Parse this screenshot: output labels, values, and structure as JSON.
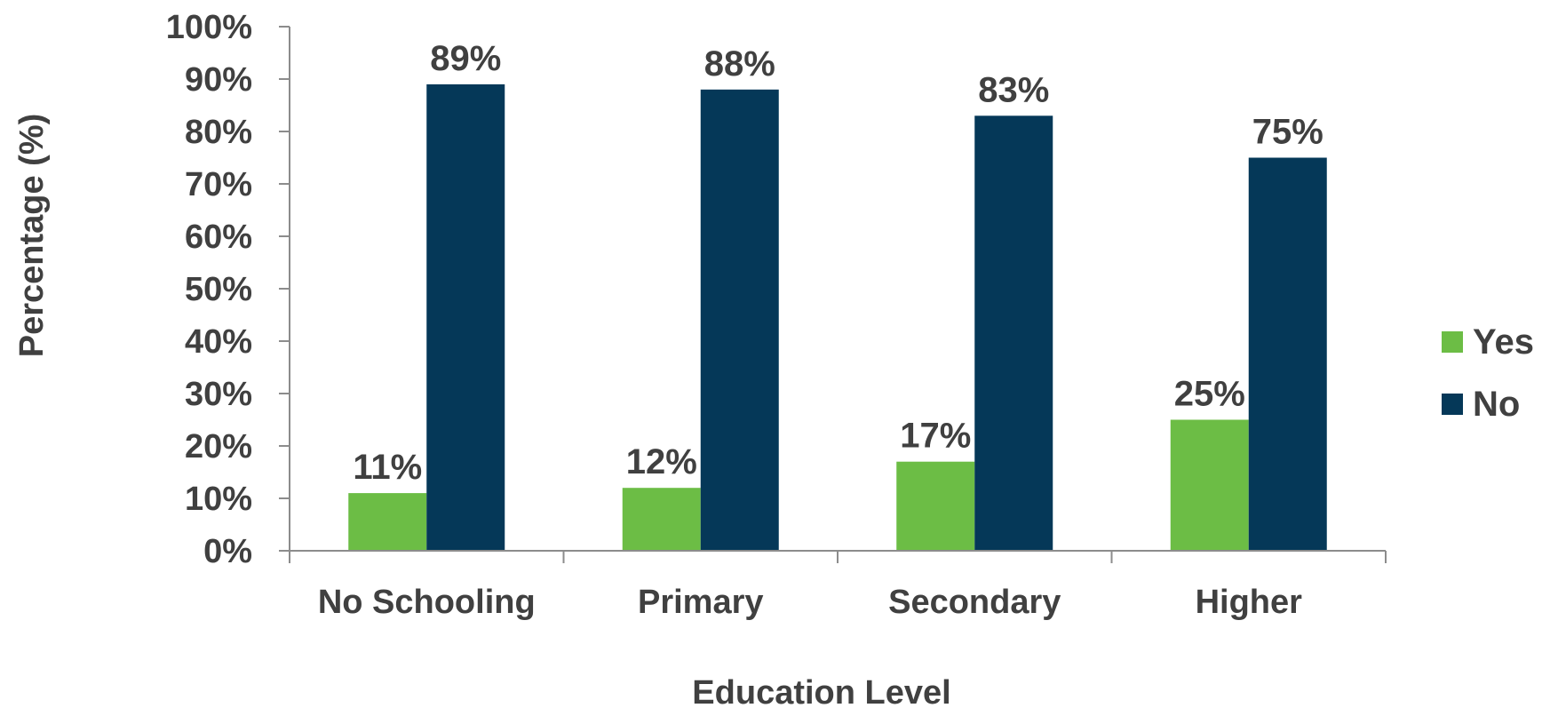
{
  "chart_data": {
    "type": "bar",
    "title": "",
    "xlabel": "Education Level",
    "ylabel": "Percentage (%)",
    "categories": [
      "No Schooling",
      "Primary",
      "Secondary",
      "Higher"
    ],
    "series": [
      {
        "name": "Yes",
        "color": "#6cbd45",
        "values": [
          11,
          12,
          17,
          25
        ],
        "labels": [
          "11%",
          "12%",
          "17%",
          "25%"
        ]
      },
      {
        "name": "No",
        "color": "#053858",
        "values": [
          89,
          88,
          83,
          75
        ],
        "labels": [
          "89%",
          "88%",
          "83%",
          "75%"
        ]
      }
    ],
    "ylim": [
      0,
      100
    ],
    "yticks": [
      0,
      10,
      20,
      30,
      40,
      50,
      60,
      70,
      80,
      90,
      100
    ],
    "ytick_labels": [
      "0%",
      "10%",
      "20%",
      "30%",
      "40%",
      "50%",
      "60%",
      "70%",
      "80%",
      "90%",
      "100%"
    ],
    "grid": false,
    "legend_position": "right",
    "axis_color": "#8c8c8c",
    "text_color": "#404040"
  }
}
